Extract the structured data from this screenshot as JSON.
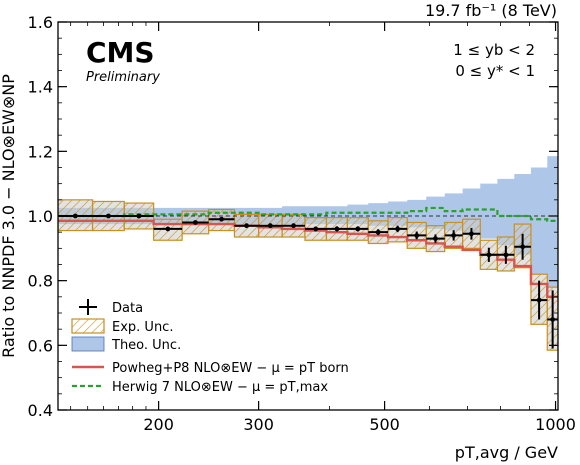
{
  "chart_data": {
    "type": "line",
    "lumi_label": "19.7 fb⁻¹ (8 TeV)",
    "experiment": "CMS",
    "status": "Preliminary",
    "selection_yb": "1 ≤ yb < 2",
    "selection_ystar": "0 ≤ y* < 1",
    "ylabel": "Ratio to NNPDF 3.0 − NLO⊗EW⊗NP",
    "xlabel": "pT,avg / GeV",
    "x_scale": "log",
    "xlim": [
      133,
      1010
    ],
    "ylim": [
      0.4,
      1.6
    ],
    "y_ticks": [
      "0.4",
      "0.6",
      "0.8",
      "1.0",
      "1.2",
      "1.4",
      "1.6"
    ],
    "x_ticks": [
      {
        "value": 200,
        "label": "200"
      },
      {
        "value": 300,
        "label": "300"
      },
      {
        "value": 500,
        "label": "500"
      },
      {
        "value": 1000,
        "label": "1000"
      }
    ],
    "reference_line": 1.0,
    "bin_edges": [
      133,
      153,
      174,
      196,
      220,
      245,
      272,
      300,
      330,
      362,
      395,
      430,
      468,
      507,
      548,
      592,
      638,
      686,
      737,
      790,
      846,
      905,
      967,
      1010
    ],
    "data": {
      "name": "Data",
      "values": [
        1.0,
        1.0,
        1.0,
        0.96,
        0.98,
        0.99,
        0.97,
        0.97,
        0.97,
        0.96,
        0.96,
        0.96,
        0.95,
        0.96,
        0.94,
        0.93,
        0.94,
        0.945,
        0.88,
        0.88,
        0.905,
        0.74,
        0.68
      ],
      "stat_errors": [
        0.005,
        0.005,
        0.005,
        0.006,
        0.006,
        0.006,
        0.006,
        0.007,
        0.007,
        0.007,
        0.008,
        0.008,
        0.009,
        0.01,
        0.012,
        0.013,
        0.016,
        0.018,
        0.022,
        0.028,
        0.04,
        0.06,
        0.09
      ]
    },
    "exp_unc": {
      "name": "Exp. Unc.",
      "lower": [
        0.955,
        0.955,
        0.96,
        0.925,
        0.945,
        0.955,
        0.935,
        0.935,
        0.935,
        0.925,
        0.925,
        0.925,
        0.915,
        0.92,
        0.9,
        0.89,
        0.9,
        0.9,
        0.835,
        0.83,
        0.84,
        0.665,
        0.585
      ],
      "upper": [
        1.05,
        1.045,
        1.04,
        0.99,
        1.015,
        1.02,
        1.005,
        1.005,
        1.005,
        0.995,
        0.995,
        0.995,
        0.985,
        0.995,
        0.98,
        0.97,
        0.98,
        0.99,
        0.925,
        0.935,
        0.975,
        0.82,
        0.78
      ]
    },
    "theo_unc": {
      "name": "Theo. Unc.",
      "lower": [
        0.975,
        0.975,
        0.975,
        0.975,
        0.975,
        0.975,
        0.975,
        0.975,
        0.975,
        0.975,
        0.975,
        0.975,
        0.97,
        0.97,
        0.965,
        0.96,
        0.955,
        0.945,
        0.93,
        0.91,
        0.88,
        0.82,
        0.78
      ],
      "upper": [
        1.025,
        1.025,
        1.025,
        1.025,
        1.025,
        1.025,
        1.025,
        1.025,
        1.03,
        1.03,
        1.03,
        1.035,
        1.04,
        1.045,
        1.05,
        1.06,
        1.07,
        1.085,
        1.1,
        1.115,
        1.13,
        1.15,
        1.185
      ]
    },
    "powheg": {
      "name": "Powheg+P8 NLO⊗EW − μ = pT born",
      "color": "#d9534f",
      "values": [
        0.985,
        0.985,
        0.985,
        0.975,
        0.975,
        0.975,
        0.97,
        0.965,
        0.96,
        0.955,
        0.95,
        0.945,
        0.94,
        0.935,
        0.925,
        0.915,
        0.905,
        0.895,
        0.88,
        0.865,
        0.845,
        0.79,
        0.75
      ]
    },
    "herwig": {
      "name": "Herwig 7 NLO⊗EW − μ = pT,max",
      "color": "#2ca02c",
      "values": [
        1.0,
        1.0,
        1.005,
        1.005,
        1.005,
        1.01,
        1.01,
        1.005,
        1.005,
        1.005,
        1.01,
        1.01,
        1.01,
        1.01,
        1.015,
        1.025,
        1.015,
        1.02,
        1.02,
        1.0,
        1.0,
        0.99,
        0.985
      ]
    },
    "legend": {
      "position": "bottom-left",
      "entries": [
        "Data",
        "Exp. Unc.",
        "Theo. Unc.",
        "Powheg+P8 NLO⊗EW − μ = pT born",
        "Herwig 7 NLO⊗EW − μ = pT,max"
      ]
    },
    "colors": {
      "exp_unc_edge": "#c8901e",
      "theo_unc_fill": "#aec7e8",
      "theo_unc_edge": "#4a6fb5",
      "grey_band": "#cccccc"
    }
  }
}
